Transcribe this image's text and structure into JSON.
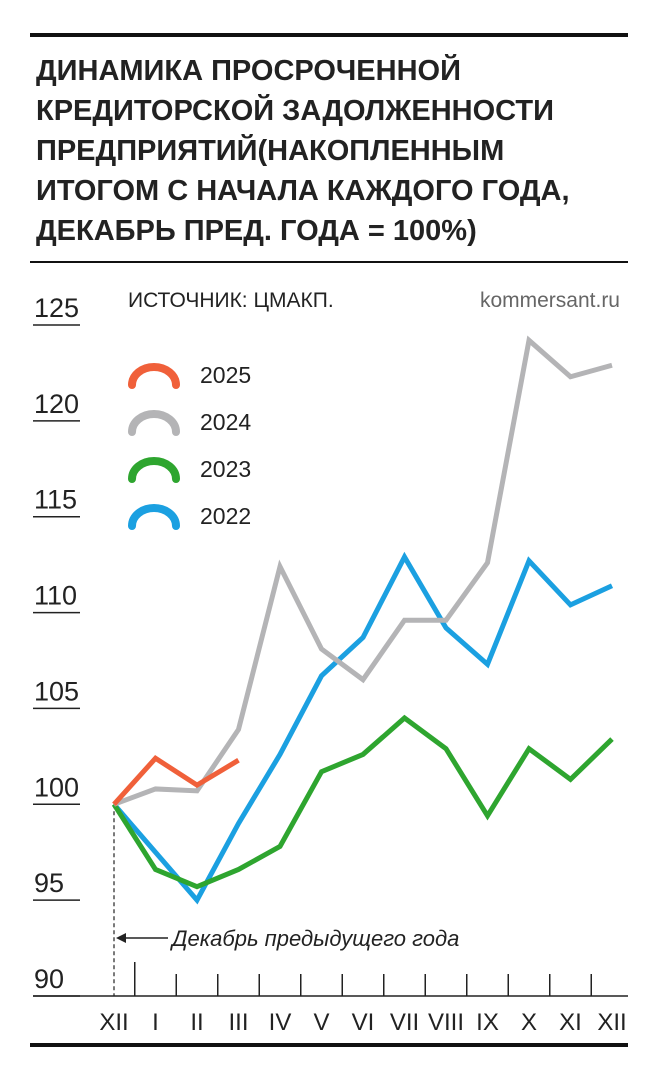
{
  "chart_data": {
    "type": "line",
    "title_lines": [
      "ДИНАМИКА ПРОСРОЧЕННОЙ",
      "КРЕДИТОРСКОЙ ЗАДОЛЖЕННОСТИ",
      "ПРЕДПРИЯТИЙ(НАКОПЛЕННЫМ",
      "ИТОГОМ С НАЧАЛА КАЖДОГО ГОДА,",
      "ДЕКАБРЬ ПРЕД. ГОДА = 100%)"
    ],
    "source": "ИСТОЧНИК: ЦМАКП.",
    "credit": "kommersant.ru",
    "annotation": "Декабрь предыдущего года",
    "categories": [
      "XII",
      "I",
      "II",
      "III",
      "IV",
      "V",
      "VI",
      "VII",
      "VIII",
      "IX",
      "X",
      "XI",
      "XII"
    ],
    "ylim": [
      90,
      125
    ],
    "yticks": [
      90,
      95,
      100,
      105,
      110,
      115,
      120,
      125
    ],
    "series": [
      {
        "name": "2025",
        "color": "#f0603a",
        "values": [
          100,
          102.4,
          101.0,
          102.3,
          null,
          null,
          null,
          null,
          null,
          null,
          null,
          null,
          null
        ]
      },
      {
        "name": "2024",
        "color": "#b4b4b6",
        "values": [
          100,
          100.8,
          100.7,
          103.9,
          112.4,
          108.1,
          106.5,
          109.6,
          109.6,
          112.6,
          124.2,
          122.3,
          122.9
        ]
      },
      {
        "name": "2023",
        "color": "#2ea52f",
        "values": [
          100,
          96.6,
          95.7,
          96.6,
          97.8,
          101.7,
          102.6,
          104.5,
          102.9,
          99.4,
          102.9,
          101.3,
          103.4
        ]
      },
      {
        "name": "2022",
        "color": "#1ba0e1",
        "values": [
          100,
          97.5,
          95.0,
          99.0,
          102.6,
          106.7,
          108.7,
          112.9,
          109.2,
          107.3,
          112.7,
          110.4,
          111.4
        ]
      }
    ]
  }
}
